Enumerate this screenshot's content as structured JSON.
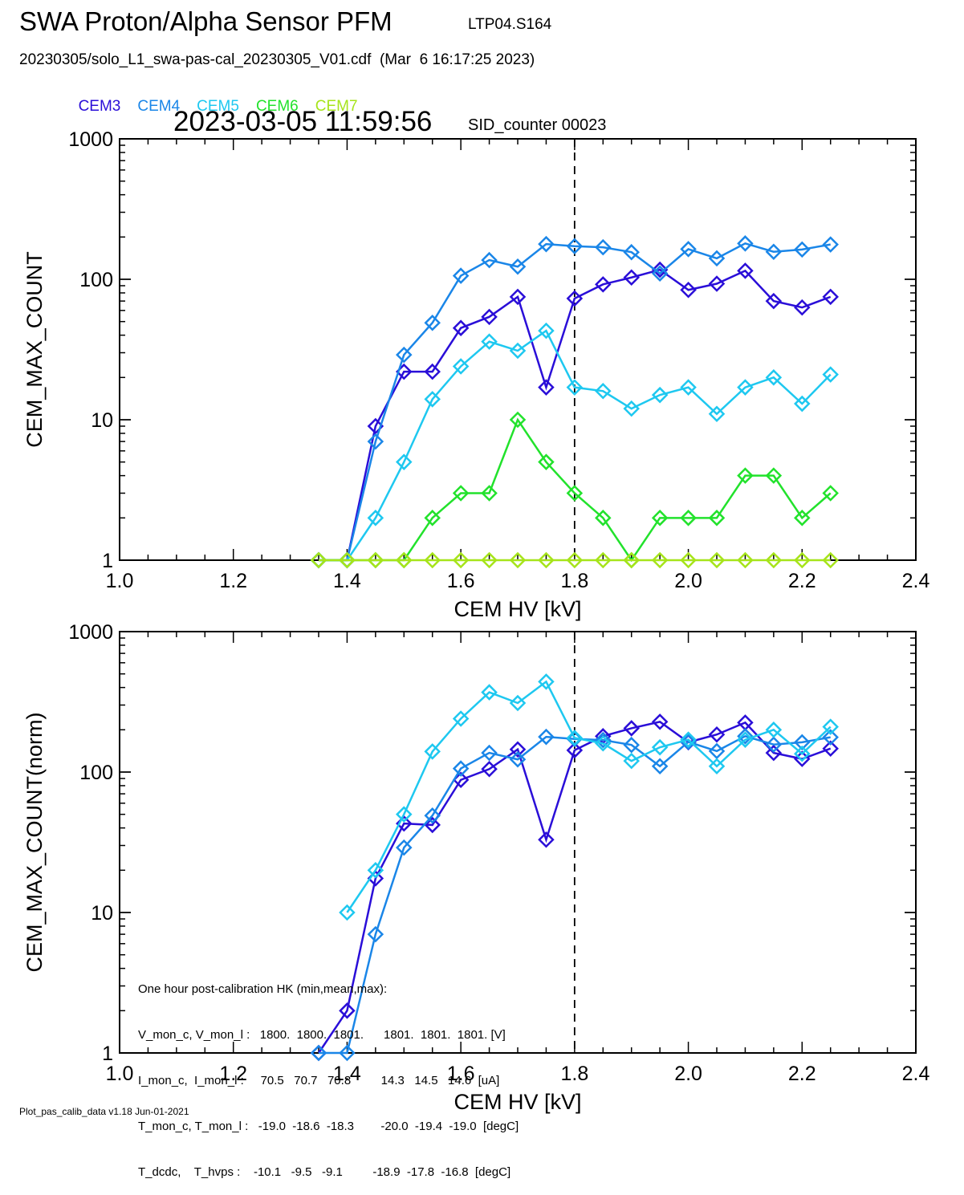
{
  "header": {
    "title": "SWA Proton/Alpha Sensor PFM",
    "subtitle": "LTP04.S164",
    "file": "20230305/solo_L1_swa-pas-cal_20230305_V01.cdf  (Mar  6 16:17:25 2023)",
    "timestamp": "2023-03-05 11:59:56",
    "sid": "SID_counter 00023"
  },
  "footer": "Plot_pas_calib_data v1.18 Jun-01-2021",
  "hk": {
    "title": "One hour post-calibration HK (min,mean,max):",
    "rows": [
      "V_mon_c, V_mon_l :   1800.  1800.  1801.      1801.  1801.  1801. [V]",
      "I_mon_c,  I_mon_l :     70.5   70.7   70.8         14.3   14.5   14.6  [uA]",
      "T_mon_c, T_mon_l :   -19.0  -18.6  -18.3        -20.0  -19.4  -19.0  [degC]",
      "T_dcdc,    T_hvps :    -10.1   -9.5   -9.1         -18.9  -17.8  -16.8  [degC]"
    ]
  },
  "chart_data": [
    {
      "type": "line",
      "xlabel": "CEM HV [kV]",
      "ylabel": "CEM_MAX_COUNT",
      "xlim": [
        1.0,
        2.4
      ],
      "ylim": [
        1,
        1000
      ],
      "yscale": "log",
      "xticks": [
        "1.0",
        "1.2",
        "1.4",
        "1.6",
        "1.8",
        "2.0",
        "2.2",
        "2.4"
      ],
      "yticks": [
        "1",
        "10",
        "100",
        "1000"
      ],
      "vline": 1.8,
      "marker": "diamond",
      "series": [
        {
          "name": "CEM3",
          "color": "#2a0ed8",
          "x": [
            1.35,
            1.4,
            1.45,
            1.5,
            1.55,
            1.6,
            1.65,
            1.7,
            1.75,
            1.8,
            1.85,
            1.9,
            1.95,
            2.0,
            2.05,
            2.1,
            2.15,
            2.2,
            2.25
          ],
          "y": [
            1,
            1,
            9,
            22,
            22,
            45,
            54,
            75,
            17,
            73,
            92,
            103,
            117,
            84,
            93,
            115,
            70,
            63,
            75
          ]
        },
        {
          "name": "CEM4",
          "color": "#1a86e8",
          "x": [
            1.35,
            1.4,
            1.45,
            1.5,
            1.55,
            1.6,
            1.65,
            1.7,
            1.75,
            1.8,
            1.85,
            1.9,
            1.95,
            2.0,
            2.05,
            2.1,
            2.15,
            2.2,
            2.25
          ],
          "y": [
            1,
            1,
            7,
            29,
            49,
            106,
            137,
            123,
            178,
            172,
            169,
            156,
            110,
            164,
            141,
            180,
            157,
            163,
            177
          ]
        },
        {
          "name": "CEM5",
          "color": "#1ec8f0",
          "x": [
            1.35,
            1.4,
            1.45,
            1.5,
            1.55,
            1.6,
            1.65,
            1.7,
            1.75,
            1.8,
            1.85,
            1.9,
            1.95,
            2.0,
            2.05,
            2.1,
            2.15,
            2.2,
            2.25
          ],
          "y": [
            1,
            1,
            2,
            5,
            14,
            24,
            36,
            31,
            43,
            17,
            16,
            12,
            15,
            17,
            11,
            17,
            20,
            13,
            21
          ]
        },
        {
          "name": "CEM6",
          "color": "#22e22c",
          "x": [
            1.35,
            1.4,
            1.45,
            1.5,
            1.55,
            1.6,
            1.65,
            1.7,
            1.75,
            1.8,
            1.85,
            1.9,
            1.95,
            2.0,
            2.05,
            2.1,
            2.15,
            2.2,
            2.25
          ],
          "y": [
            1,
            1,
            1,
            1,
            2,
            3,
            3,
            10,
            5,
            3,
            2,
            1,
            2,
            2,
            2,
            4,
            4,
            2,
            3
          ]
        },
        {
          "name": "CEM7",
          "color": "#a6e41a",
          "x": [
            1.35,
            1.4,
            1.45,
            1.5,
            1.55,
            1.6,
            1.65,
            1.7,
            1.75,
            1.8,
            1.85,
            1.9,
            1.95,
            2.0,
            2.05,
            2.1,
            2.15,
            2.2,
            2.25
          ],
          "y": [
            1,
            1,
            1,
            1,
            1,
            1,
            1,
            1,
            1,
            1,
            1,
            1,
            1,
            1,
            1,
            1,
            1,
            1,
            1
          ]
        }
      ]
    },
    {
      "type": "line",
      "xlabel": "CEM HV [kV]",
      "ylabel": "CEM_MAX_COUNT(norm)",
      "xlim": [
        1.0,
        2.4
      ],
      "ylim": [
        1,
        1000
      ],
      "yscale": "log",
      "xticks": [
        "1.0",
        "1.2",
        "1.4",
        "1.6",
        "1.8",
        "2.0",
        "2.2",
        "2.4"
      ],
      "yticks": [
        "1",
        "10",
        "100",
        "1000"
      ],
      "vline": 1.8,
      "marker": "diamond",
      "series": [
        {
          "name": "CEM3",
          "color": "#2a0ed8",
          "x": [
            1.35,
            1.4,
            1.45,
            1.5,
            1.55,
            1.6,
            1.65,
            1.7,
            1.75,
            1.8,
            1.85,
            1.9,
            1.95,
            2.0,
            2.05,
            2.1,
            2.15,
            2.2,
            2.25
          ],
          "y": [
            1,
            2,
            17.5,
            43,
            42,
            88,
            105,
            145,
            33,
            143,
            180,
            205,
            228,
            163,
            185,
            225,
            137,
            124,
            147
          ]
        },
        {
          "name": "CEM4",
          "color": "#1a86e8",
          "x": [
            1.35,
            1.4,
            1.45,
            1.5,
            1.55,
            1.6,
            1.65,
            1.7,
            1.75,
            1.8,
            1.85,
            1.9,
            1.95,
            2.0,
            2.05,
            2.1,
            2.15,
            2.2,
            2.25
          ],
          "y": [
            1,
            1,
            7,
            29,
            49,
            106,
            137,
            123,
            178,
            172,
            169,
            156,
            110,
            164,
            141,
            180,
            157,
            163,
            177
          ]
        },
        {
          "name": "CEM5",
          "color": "#1ec8f0",
          "x": [
            1.4,
            1.45,
            1.5,
            1.55,
            1.6,
            1.65,
            1.7,
            1.75,
            1.8,
            1.85,
            1.9,
            1.95,
            2.0,
            2.05,
            2.1,
            2.15,
            2.2,
            2.25
          ],
          "y": [
            10,
            20,
            50,
            140,
            240,
            370,
            310,
            440,
            175,
            160,
            120,
            150,
            170,
            110,
            170,
            200,
            135,
            210
          ]
        }
      ]
    }
  ]
}
